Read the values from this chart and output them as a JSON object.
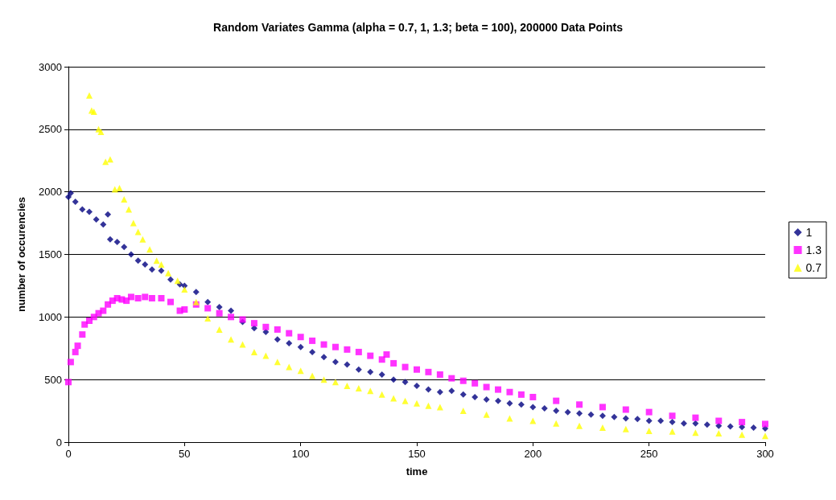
{
  "chart_data": {
    "type": "scatter",
    "title": "Random Variates Gamma (alpha = 0.7, 1, 1.3; beta = 100), 200000 Data Points",
    "xlabel": "time",
    "ylabel": "number of occurencies",
    "xlim": [
      0,
      300
    ],
    "xticks": [
      0,
      50,
      100,
      150,
      200,
      250,
      300
    ],
    "ylim": [
      0,
      3000
    ],
    "yticks": [
      0,
      500,
      1000,
      1500,
      2000,
      2500,
      3000
    ],
    "grid": "y",
    "legend": "right",
    "series": [
      {
        "name": "1",
        "color": "#000080",
        "marker": "diamond",
        "x": [
          0,
          1,
          3,
          6,
          9,
          12,
          15,
          17,
          18,
          21,
          24,
          27,
          30,
          33,
          36,
          40,
          44,
          48,
          50,
          55,
          60,
          65,
          70,
          75,
          80,
          85,
          90,
          95,
          100,
          105,
          110,
          115,
          120,
          125,
          130,
          135,
          140,
          145,
          150,
          155,
          160,
          165,
          170,
          175,
          180,
          185,
          190,
          195,
          200,
          205,
          210,
          215,
          220,
          225,
          230,
          235,
          240,
          245,
          250,
          255,
          260,
          265,
          270,
          275,
          280,
          285,
          290,
          295,
          300
        ],
        "values": [
          1960,
          1990,
          1920,
          1860,
          1840,
          1780,
          1740,
          1820,
          1620,
          1600,
          1560,
          1500,
          1450,
          1420,
          1380,
          1370,
          1300,
          1260,
          1250,
          1200,
          1120,
          1080,
          1050,
          960,
          910,
          880,
          820,
          790,
          760,
          720,
          680,
          640,
          620,
          580,
          560,
          540,
          500,
          480,
          450,
          420,
          400,
          410,
          380,
          360,
          340,
          330,
          310,
          300,
          280,
          270,
          250,
          240,
          230,
          220,
          210,
          200,
          190,
          185,
          170,
          170,
          160,
          150,
          150,
          140,
          130,
          125,
          120,
          115,
          110
        ]
      },
      {
        "name": "1.3",
        "color": "#ff00ff",
        "marker": "square",
        "x": [
          0,
          1,
          3,
          4,
          6,
          7,
          9,
          11,
          13,
          15,
          17,
          19,
          21,
          23,
          25,
          27,
          30,
          33,
          36,
          40,
          44,
          48,
          50,
          55,
          60,
          65,
          70,
          75,
          80,
          85,
          90,
          95,
          100,
          105,
          110,
          115,
          120,
          125,
          130,
          135,
          137,
          140,
          145,
          150,
          155,
          160,
          165,
          170,
          175,
          180,
          185,
          190,
          195,
          200,
          210,
          220,
          230,
          240,
          250,
          260,
          270,
          280,
          290,
          300
        ],
        "values": [
          480,
          640,
          720,
          770,
          860,
          940,
          970,
          1000,
          1030,
          1050,
          1100,
          1130,
          1150,
          1140,
          1130,
          1160,
          1150,
          1160,
          1150,
          1150,
          1120,
          1050,
          1060,
          1100,
          1070,
          1030,
          1000,
          980,
          950,
          920,
          900,
          870,
          840,
          810,
          780,
          760,
          740,
          720,
          690,
          660,
          700,
          630,
          600,
          580,
          560,
          540,
          510,
          490,
          470,
          440,
          420,
          400,
          380,
          360,
          330,
          300,
          280,
          260,
          240,
          210,
          195,
          170,
          160,
          145
        ]
      },
      {
        "name": "0.7",
        "color": "#ffff00",
        "marker": "triangle",
        "x": [
          9,
          10,
          11,
          13,
          14,
          16,
          18,
          20,
          22,
          24,
          26,
          28,
          30,
          32,
          35,
          38,
          40,
          43,
          47,
          50,
          55,
          60,
          65,
          70,
          75,
          80,
          85,
          90,
          95,
          100,
          105,
          110,
          115,
          120,
          125,
          130,
          135,
          140,
          145,
          150,
          155,
          160,
          170,
          180,
          190,
          200,
          210,
          220,
          230,
          240,
          250,
          260,
          270,
          280,
          290,
          300
        ],
        "values": [
          2770,
          2650,
          2640,
          2500,
          2480,
          2240,
          2260,
          2020,
          2030,
          1940,
          1860,
          1750,
          1680,
          1620,
          1540,
          1450,
          1420,
          1350,
          1290,
          1220,
          1120,
          990,
          900,
          820,
          780,
          720,
          690,
          640,
          600,
          570,
          530,
          500,
          480,
          450,
          430,
          410,
          380,
          350,
          330,
          310,
          290,
          280,
          250,
          220,
          190,
          170,
          150,
          130,
          115,
          105,
          90,
          85,
          75,
          70,
          60,
          50
        ]
      }
    ]
  }
}
